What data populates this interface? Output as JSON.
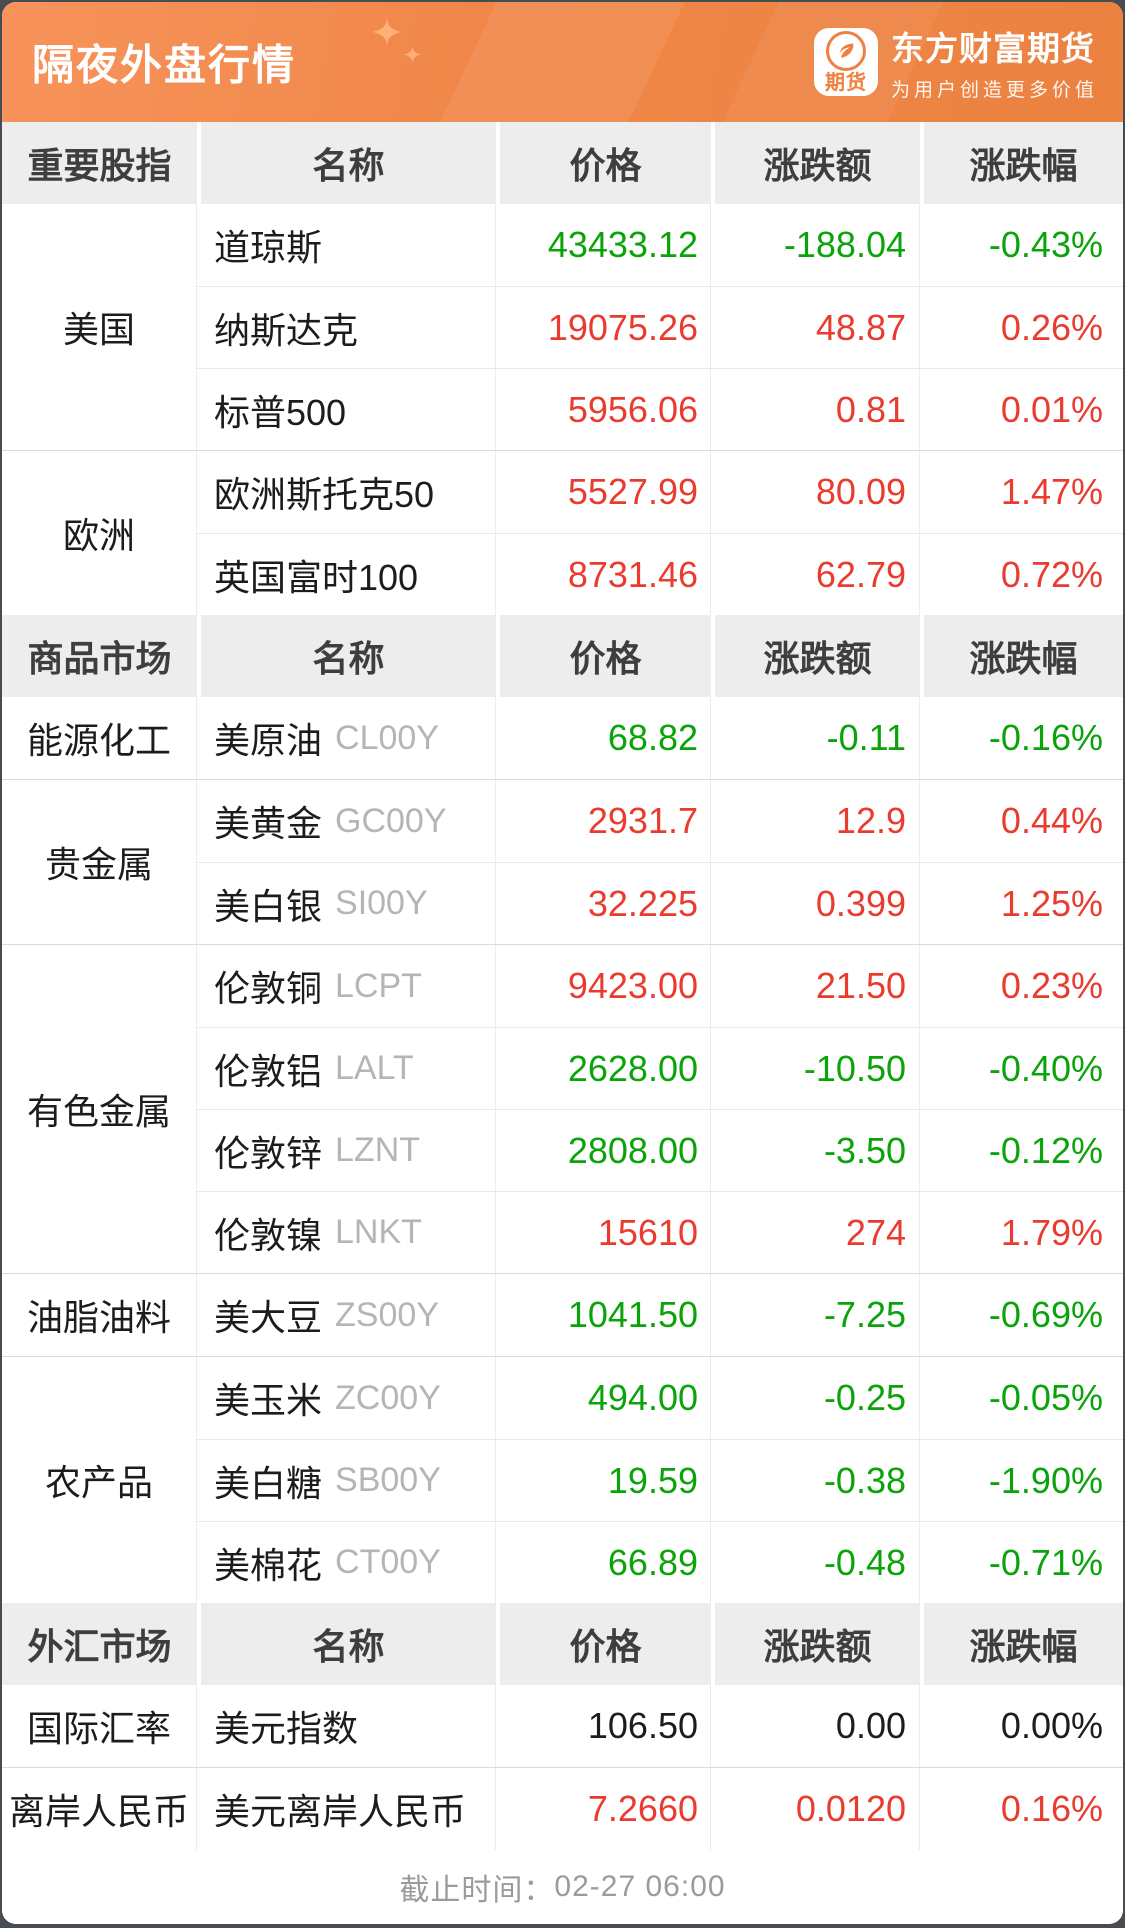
{
  "header": {
    "title": "隔夜外盘行情",
    "brand": {
      "icon_label": "期货",
      "name": "东方财富期货",
      "tagline": "为用户创造更多价值"
    }
  },
  "colors": {
    "up_red": "#e93b2e",
    "down_green": "#0aa40a",
    "flat_black": "#1d1d1d",
    "banner_orange": "#f08749",
    "code_gray": "#b5b5b5",
    "header_cell_gray": "#ededed"
  },
  "sections": [
    {
      "title": "重要股指",
      "columns": [
        "名称",
        "价格",
        "涨跌额",
        "涨跌幅"
      ],
      "groups": [
        {
          "label": "美国",
          "rows": [
            {
              "name": "道琼斯",
              "code": "",
              "price": "43433.12",
              "change": "-188.04",
              "pct": "-0.43%",
              "dir": "down"
            },
            {
              "name": "纳斯达克",
              "code": "",
              "price": "19075.26",
              "change": "48.87",
              "pct": "0.26%",
              "dir": "up"
            },
            {
              "name": "标普500",
              "code": "",
              "price": "5956.06",
              "change": "0.81",
              "pct": "0.01%",
              "dir": "up"
            }
          ]
        },
        {
          "label": "欧洲",
          "rows": [
            {
              "name": "欧洲斯托克50",
              "code": "",
              "price": "5527.99",
              "change": "80.09",
              "pct": "1.47%",
              "dir": "up"
            },
            {
              "name": "英国富时100",
              "code": "",
              "price": "8731.46",
              "change": "62.79",
              "pct": "0.72%",
              "dir": "up"
            }
          ]
        }
      ]
    },
    {
      "title": "商品市场",
      "columns": [
        "名称",
        "价格",
        "涨跌额",
        "涨跌幅"
      ],
      "groups": [
        {
          "label": "能源化工",
          "rows": [
            {
              "name": "美原油",
              "code": "CL00Y",
              "price": "68.82",
              "change": "-0.11",
              "pct": "-0.16%",
              "dir": "down"
            }
          ]
        },
        {
          "label": "贵金属",
          "rows": [
            {
              "name": "美黄金",
              "code": "GC00Y",
              "price": "2931.7",
              "change": "12.9",
              "pct": "0.44%",
              "dir": "up"
            },
            {
              "name": "美白银",
              "code": "SI00Y",
              "price": "32.225",
              "change": "0.399",
              "pct": "1.25%",
              "dir": "up"
            }
          ]
        },
        {
          "label": "有色金属",
          "rows": [
            {
              "name": "伦敦铜",
              "code": "LCPT",
              "price": "9423.00",
              "change": "21.50",
              "pct": "0.23%",
              "dir": "up"
            },
            {
              "name": "伦敦铝",
              "code": "LALT",
              "price": "2628.00",
              "change": "-10.50",
              "pct": "-0.40%",
              "dir": "down"
            },
            {
              "name": "伦敦锌",
              "code": "LZNT",
              "price": "2808.00",
              "change": "-3.50",
              "pct": "-0.12%",
              "dir": "down"
            },
            {
              "name": "伦敦镍",
              "code": "LNKT",
              "price": "15610",
              "change": "274",
              "pct": "1.79%",
              "dir": "up"
            }
          ]
        },
        {
          "label": "油脂油料",
          "rows": [
            {
              "name": "美大豆",
              "code": "ZS00Y",
              "price": "1041.50",
              "change": "-7.25",
              "pct": "-0.69%",
              "dir": "down"
            }
          ]
        },
        {
          "label": "农产品",
          "rows": [
            {
              "name": "美玉米",
              "code": "ZC00Y",
              "price": "494.00",
              "change": "-0.25",
              "pct": "-0.05%",
              "dir": "down"
            },
            {
              "name": "美白糖",
              "code": "SB00Y",
              "price": "19.59",
              "change": "-0.38",
              "pct": "-1.90%",
              "dir": "down"
            },
            {
              "name": "美棉花",
              "code": "CT00Y",
              "price": "66.89",
              "change": "-0.48",
              "pct": "-0.71%",
              "dir": "down"
            }
          ]
        }
      ]
    },
    {
      "title": "外汇市场",
      "columns": [
        "名称",
        "价格",
        "涨跌额",
        "涨跌幅"
      ],
      "groups": [
        {
          "label": "国际汇率",
          "rows": [
            {
              "name": "美元指数",
              "code": "",
              "price": "106.50",
              "change": "0.00",
              "pct": "0.00%",
              "dir": "flat"
            }
          ]
        },
        {
          "label": "离岸人民币",
          "rows": [
            {
              "name": "美元离岸人民币",
              "code": "",
              "price": "7.2660",
              "change": "0.0120",
              "pct": "0.16%",
              "dir": "up"
            }
          ]
        }
      ]
    }
  ],
  "footer": {
    "label": "截止时间：",
    "value": "02-27 06:00"
  }
}
